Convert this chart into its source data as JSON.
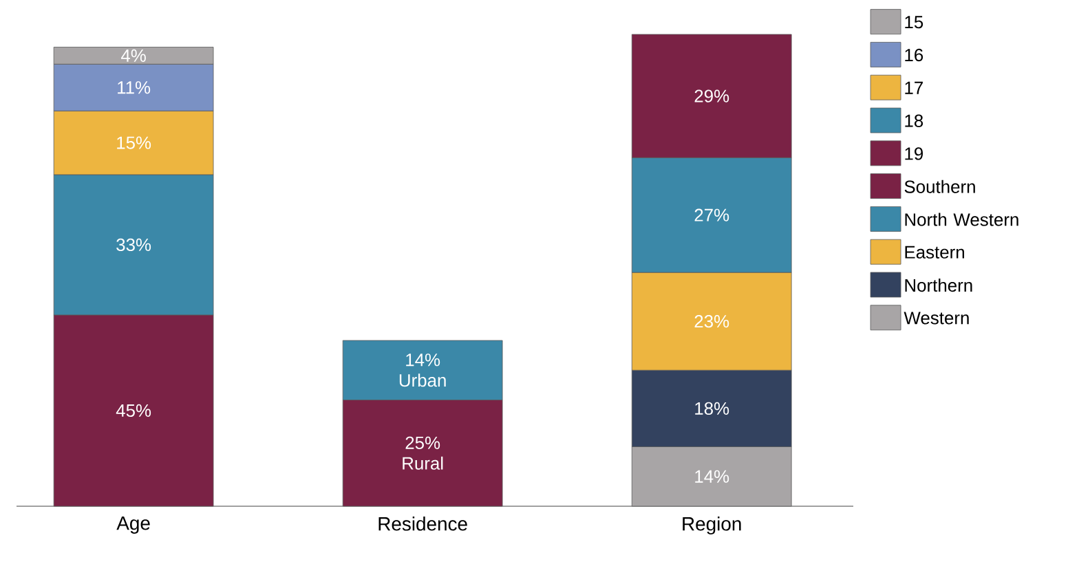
{
  "chart_data": {
    "type": "bar",
    "stacked": true,
    "legend": "right",
    "categories": [
      "Age",
      "Residence",
      "Region"
    ],
    "series": [
      {
        "name": "19",
        "color": "#7a2245",
        "values": [
          45,
          null,
          null
        ],
        "value_labels": [
          "45%",
          null,
          null
        ]
      },
      {
        "name": "18",
        "color": "#3b88a8",
        "values": [
          33,
          null,
          null
        ],
        "value_labels": [
          "33%",
          null,
          null
        ]
      },
      {
        "name": "17",
        "color": "#edb540",
        "values": [
          15,
          null,
          null
        ],
        "value_labels": [
          "15%",
          null,
          null
        ]
      },
      {
        "name": "16",
        "color": "#7a91c4",
        "values": [
          11,
          null,
          null
        ],
        "value_labels": [
          "11%",
          null,
          null
        ]
      },
      {
        "name": "15",
        "color": "#a8a5a6",
        "values": [
          4,
          null,
          null
        ],
        "value_labels": [
          "4%",
          null,
          null
        ]
      },
      {
        "color": "#7a2245",
        "values": [
          null,
          25,
          null
        ],
        "value_labels": [
          null,
          "25% Rural",
          null
        ]
      },
      {
        "color": "#3b88a8",
        "values": [
          null,
          14,
          null
        ],
        "value_labels": [
          null,
          "14% Urban",
          null
        ]
      },
      {
        "name": "Western",
        "color": "#a8a5a6",
        "values": [
          null,
          null,
          14
        ],
        "value_labels": [
          null,
          null,
          "14%"
        ]
      },
      {
        "name": "Northern",
        "color": "#33425f",
        "values": [
          null,
          null,
          18
        ],
        "value_labels": [
          null,
          null,
          "18%"
        ]
      },
      {
        "name": "Eastern",
        "color": "#edb540",
        "values": [
          null,
          null,
          23
        ],
        "value_labels": [
          null,
          null,
          "23%"
        ]
      },
      {
        "name": "North Western",
        "color": "#3b88a8",
        "values": [
          null,
          null,
          27
        ],
        "value_labels": [
          null,
          null,
          "27%"
        ]
      },
      {
        "name": "Southern",
        "color": "#7a2245",
        "values": [
          null,
          null,
          29
        ],
        "value_labels": [
          null,
          null,
          "29%"
        ]
      }
    ]
  }
}
